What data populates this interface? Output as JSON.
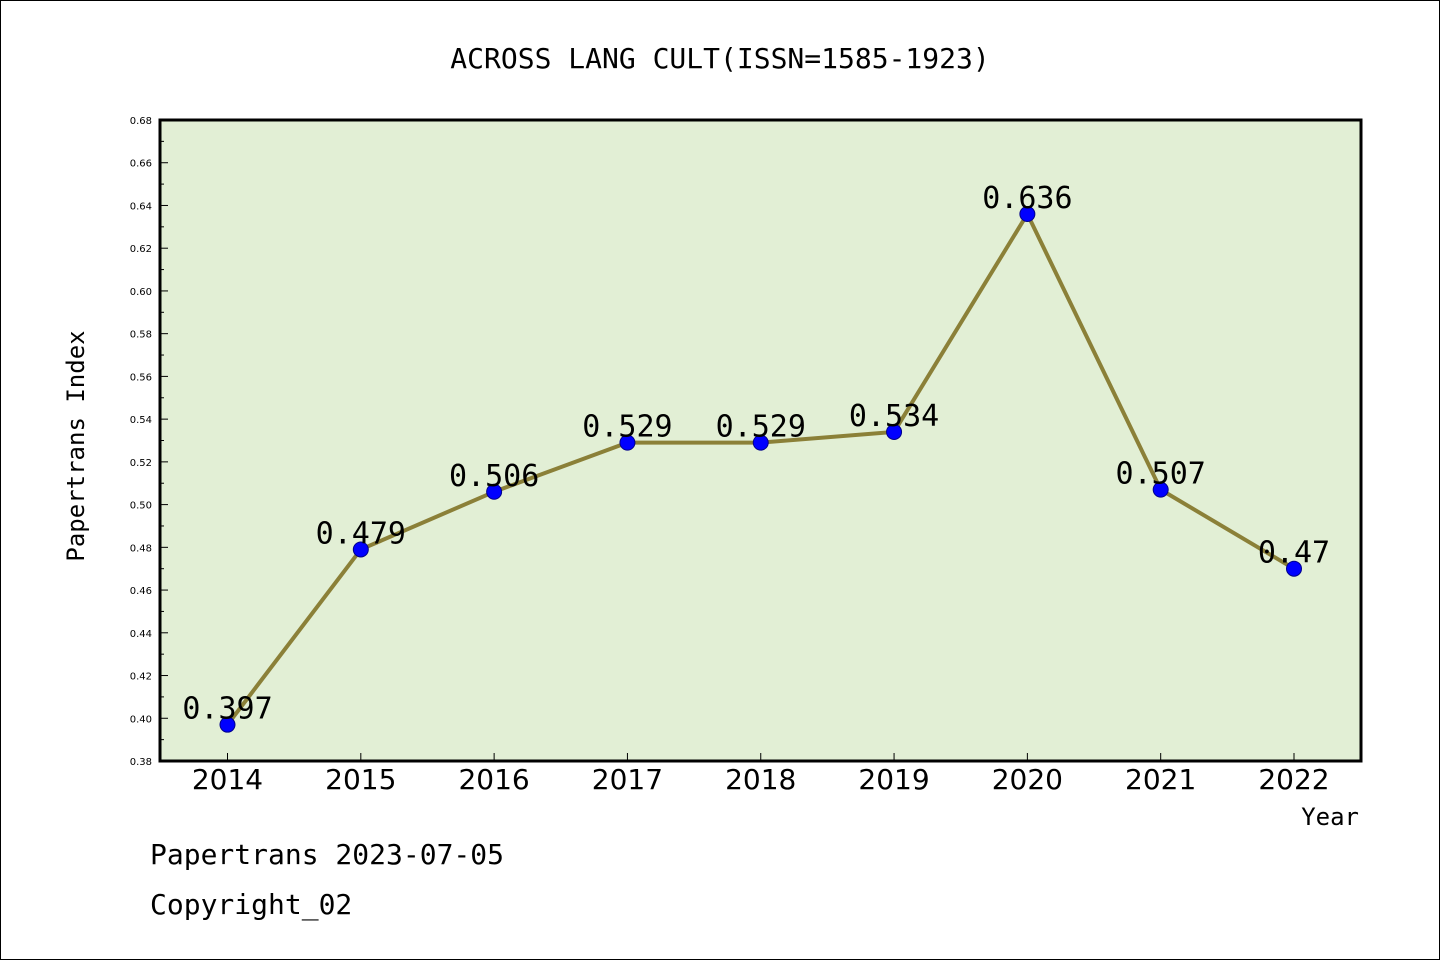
{
  "chart_data": {
    "type": "line",
    "title": "ACROSS LANG CULT(ISSN=1585-1923)",
    "xlabel": "Year",
    "ylabel": "Papertrans Index",
    "categories": [
      "2014",
      "2015",
      "2016",
      "2017",
      "2018",
      "2019",
      "2020",
      "2021",
      "2022"
    ],
    "series": [
      {
        "values": [
          0.397,
          0.479,
          0.506,
          0.529,
          0.529,
          0.534,
          0.636,
          0.507,
          0.47
        ],
        "labels": [
          "0.397",
          "0.479",
          "0.506",
          "0.529",
          "0.529",
          "0.534",
          "0.636",
          "0.507",
          "0.47"
        ],
        "line_color": "#8b8038",
        "marker_color": "#0000ff"
      }
    ],
    "ylim": [
      0.38,
      0.68
    ],
    "yticks": [
      "0.38",
      "0.40",
      "0.42",
      "0.44",
      "0.46",
      "0.48",
      "0.50",
      "0.52",
      "0.54",
      "0.56",
      "0.58",
      "0.60",
      "0.62",
      "0.64",
      "0.66",
      "0.68"
    ],
    "grid": false,
    "plot_background": "#e2efd5"
  },
  "footer": {
    "line1": "Papertrans 2023-07-05",
    "line2": "Copyright_02"
  }
}
